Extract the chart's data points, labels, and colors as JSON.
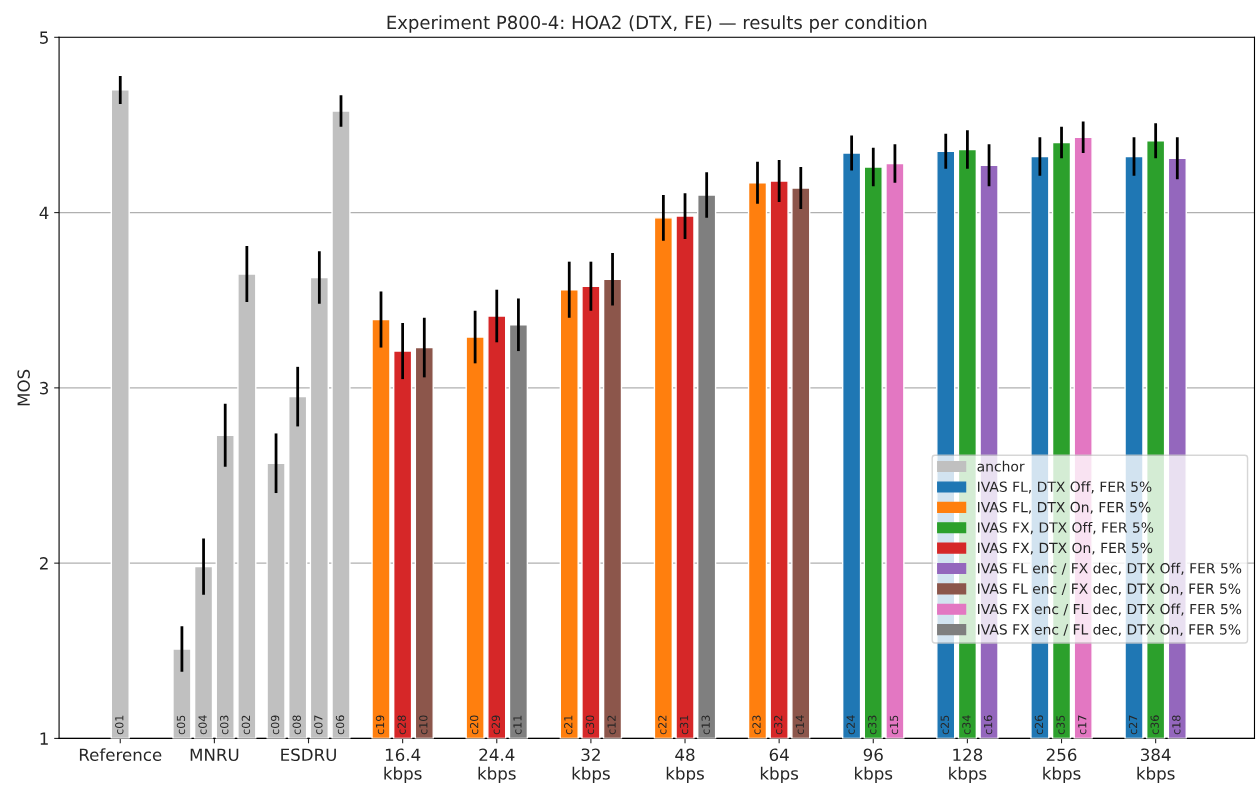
{
  "chart_data": {
    "type": "bar",
    "title": "Experiment P800-4: HOA2 (DTX, FE) — results per condition",
    "ylabel": "MOS",
    "categories": [
      "Reference",
      "MNRU",
      "ESDRU",
      "16.4\nkbps",
      "24.4\nkbps",
      "32\nkbps",
      "48\nkbps",
      "64\nkbps",
      "96\nkbps",
      "128\nkbps",
      "256\nkbps",
      "384\nkbps"
    ],
    "ylim": [
      1,
      5
    ],
    "yticks": [
      1,
      2,
      3,
      4,
      5
    ],
    "grid": "y",
    "legend": "right",
    "series": [
      {
        "name": "anchor",
        "color": "#c0c0c0",
        "values": [
          4.7,
          1.51,
          2.57,
          null,
          null,
          null,
          null,
          null,
          null,
          null,
          null,
          null
        ],
        "errors": [
          0.08,
          0.13,
          0.17,
          null,
          null,
          null,
          null,
          null,
          null,
          null,
          null,
          null
        ],
        "value_labels": [
          "c01",
          "c05",
          "c09",
          null,
          null,
          null,
          null,
          null,
          null,
          null,
          null,
          null
        ]
      },
      {
        "color": "#c0c0c0",
        "values": [
          null,
          1.98,
          2.95,
          null,
          null,
          null,
          null,
          null,
          null,
          null,
          null,
          null
        ],
        "errors": [
          null,
          0.16,
          0.17,
          null,
          null,
          null,
          null,
          null,
          null,
          null,
          null,
          null
        ],
        "value_labels": [
          null,
          "c04",
          "c08",
          null,
          null,
          null,
          null,
          null,
          null,
          null,
          null,
          null
        ]
      },
      {
        "color": "#c0c0c0",
        "values": [
          null,
          2.73,
          3.63,
          null,
          null,
          null,
          null,
          null,
          null,
          null,
          null,
          null
        ],
        "errors": [
          null,
          0.18,
          0.15,
          null,
          null,
          null,
          null,
          null,
          null,
          null,
          null,
          null
        ],
        "value_labels": [
          null,
          "c03",
          "c07",
          null,
          null,
          null,
          null,
          null,
          null,
          null,
          null,
          null
        ]
      },
      {
        "color": "#c0c0c0",
        "values": [
          null,
          3.65,
          4.58,
          null,
          null,
          null,
          null,
          null,
          null,
          null,
          null,
          null
        ],
        "errors": [
          null,
          0.16,
          0.09,
          null,
          null,
          null,
          null,
          null,
          null,
          null,
          null,
          null
        ],
        "value_labels": [
          null,
          "c02",
          "c06",
          null,
          null,
          null,
          null,
          null,
          null,
          null,
          null,
          null
        ]
      },
      {
        "name": "IVAS FL, DTX Off, FER 5%",
        "color": "#1f77b4",
        "values": [
          null,
          null,
          null,
          null,
          null,
          null,
          null,
          null,
          4.34,
          4.35,
          4.32,
          4.32
        ],
        "errors": [
          null,
          null,
          null,
          null,
          null,
          null,
          null,
          null,
          0.1,
          0.1,
          0.11,
          0.11
        ],
        "value_labels": [
          null,
          null,
          null,
          null,
          null,
          null,
          null,
          null,
          "c24",
          "c25",
          "c26",
          "c27"
        ]
      },
      {
        "name": "IVAS FL, DTX On, FER 5%",
        "color": "#ff7f0e",
        "values": [
          null,
          null,
          null,
          3.39,
          3.29,
          3.56,
          3.97,
          4.17,
          null,
          null,
          null,
          null
        ],
        "errors": [
          null,
          null,
          null,
          0.16,
          0.15,
          0.16,
          0.13,
          0.12,
          null,
          null,
          null,
          null
        ],
        "value_labels": [
          null,
          null,
          null,
          "c19",
          "c20",
          "c21",
          "c22",
          "c23",
          null,
          null,
          null,
          null
        ]
      },
      {
        "name": "IVAS FX, DTX Off, FER 5%",
        "color": "#2ca02c",
        "values": [
          null,
          null,
          null,
          null,
          null,
          null,
          null,
          null,
          4.26,
          4.36,
          4.4,
          4.41
        ],
        "errors": [
          null,
          null,
          null,
          null,
          null,
          null,
          null,
          null,
          0.11,
          0.11,
          0.09,
          0.1
        ],
        "value_labels": [
          null,
          null,
          null,
          null,
          null,
          null,
          null,
          null,
          "c33",
          "c34",
          "c35",
          "c36"
        ]
      },
      {
        "name": "IVAS FX, DTX On, FER 5%",
        "color": "#d62728",
        "values": [
          null,
          null,
          null,
          3.21,
          3.41,
          3.58,
          3.98,
          4.18,
          null,
          null,
          null,
          null
        ],
        "errors": [
          null,
          null,
          null,
          0.16,
          0.15,
          0.14,
          0.13,
          0.12,
          null,
          null,
          null,
          null
        ],
        "value_labels": [
          null,
          null,
          null,
          "c28",
          "c29",
          "c30",
          "c31",
          "c32",
          null,
          null,
          null,
          null
        ]
      },
      {
        "name": "IVAS FL enc / FX dec, DTX Off, FER 5%",
        "color": "#9467bd",
        "values": [
          null,
          null,
          null,
          null,
          null,
          null,
          null,
          null,
          null,
          4.27,
          null,
          4.31
        ],
        "errors": [
          null,
          null,
          null,
          null,
          null,
          null,
          null,
          null,
          null,
          0.12,
          null,
          0.12
        ],
        "value_labels": [
          null,
          null,
          null,
          null,
          null,
          null,
          null,
          null,
          null,
          "c16",
          null,
          "c18"
        ]
      },
      {
        "name": "IVAS FL enc / FX dec, DTX On, FER 5%",
        "color": "#8c564b",
        "values": [
          null,
          null,
          null,
          3.23,
          null,
          3.62,
          null,
          4.14,
          null,
          null,
          null,
          null
        ],
        "errors": [
          null,
          null,
          null,
          0.17,
          null,
          0.15,
          null,
          0.12,
          null,
          null,
          null,
          null
        ],
        "value_labels": [
          null,
          null,
          null,
          "c10",
          null,
          "c12",
          null,
          "c14",
          null,
          null,
          null,
          null
        ]
      },
      {
        "name": "IVAS FX enc / FL dec, DTX Off, FER 5%",
        "color": "#e377c2",
        "values": [
          null,
          null,
          null,
          null,
          null,
          null,
          null,
          null,
          4.28,
          null,
          4.43,
          null
        ],
        "errors": [
          null,
          null,
          null,
          null,
          null,
          null,
          null,
          null,
          0.11,
          null,
          0.09,
          null
        ],
        "value_labels": [
          null,
          null,
          null,
          null,
          null,
          null,
          null,
          null,
          "c15",
          null,
          "c17",
          null
        ]
      },
      {
        "name": "IVAS FX enc / FL dec, DTX On, FER 5%",
        "color": "#7f7f7f",
        "values": [
          null,
          null,
          null,
          null,
          3.36,
          null,
          4.1,
          null,
          null,
          null,
          null,
          null
        ],
        "errors": [
          null,
          null,
          null,
          null,
          0.15,
          null,
          0.13,
          null,
          null,
          null,
          null,
          null
        ],
        "value_labels": [
          null,
          null,
          null,
          null,
          "c11",
          null,
          "c13",
          null,
          null,
          null,
          null,
          null
        ]
      }
    ]
  }
}
